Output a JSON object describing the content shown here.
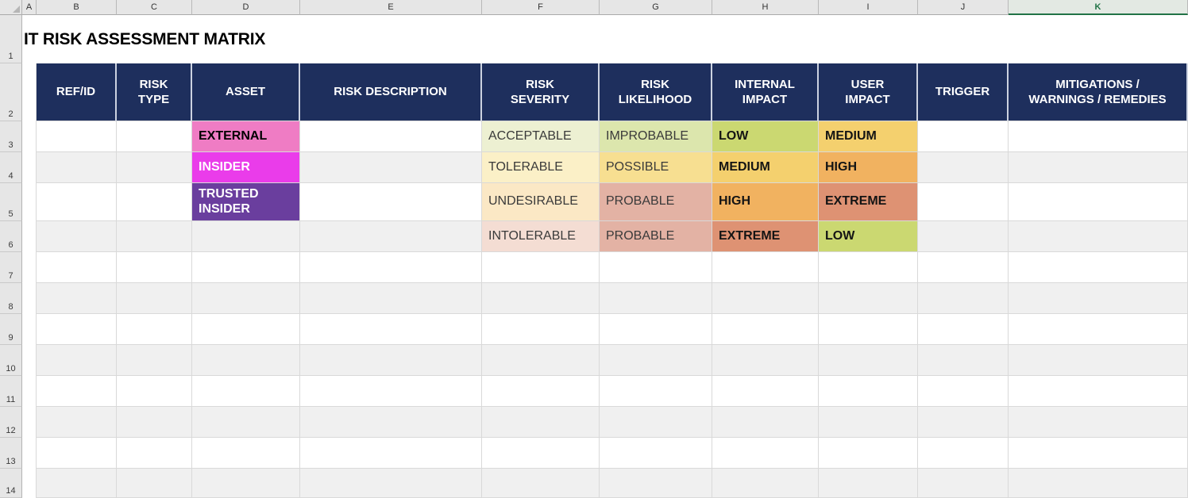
{
  "title": "IT RISK ASSESSMENT MATRIX",
  "columns": [
    {
      "letter": "A"
    },
    {
      "letter": "B"
    },
    {
      "letter": "C"
    },
    {
      "letter": "D"
    },
    {
      "letter": "E"
    },
    {
      "letter": "F"
    },
    {
      "letter": "G"
    },
    {
      "letter": "H"
    },
    {
      "letter": "I"
    },
    {
      "letter": "J"
    },
    {
      "letter": "K",
      "selected": true
    }
  ],
  "row_numbers": [
    "1",
    "2",
    "3",
    "4",
    "5",
    "6",
    "7",
    "8",
    "9",
    "10",
    "11",
    "12",
    "13",
    "14"
  ],
  "header_row": {
    "bg": "#1e2f5d",
    "text_color": "#ffffff",
    "cells": [
      {
        "col": "B",
        "label": "REF/ID"
      },
      {
        "col": "C",
        "label": "RISK\nTYPE"
      },
      {
        "col": "D",
        "label": "ASSET"
      },
      {
        "col": "E",
        "label": "RISK DESCRIPTION"
      },
      {
        "col": "F",
        "label": "RISK\nSEVERITY"
      },
      {
        "col": "G",
        "label": "RISK\nLIKELIHOOD"
      },
      {
        "col": "H",
        "label": "INTERNAL\nIMPACT"
      },
      {
        "col": "I",
        "label": "USER\nIMPACT"
      },
      {
        "col": "J",
        "label": "TRIGGER"
      },
      {
        "col": "K",
        "label": "MITIGATIONS /\nWARNINGS / REMEDIES"
      }
    ]
  },
  "matrix_rows": [
    {
      "row": 3,
      "cells": [
        {
          "col": "D",
          "text": "EXTERNAL",
          "bg": "#ef7cc4",
          "fg": "#000000",
          "bold": true
        },
        {
          "col": "F",
          "text": "ACCEPTABLE",
          "bg": "#edf0d2",
          "fg": "#3a3a3a",
          "bold": false
        },
        {
          "col": "G",
          "text": "IMPROBABLE",
          "bg": "#dce6ad",
          "fg": "#3a3a3a",
          "bold": false
        },
        {
          "col": "H",
          "text": "LOW",
          "bg": "#cbd871",
          "fg": "#141414",
          "bold": true
        },
        {
          "col": "I",
          "text": "MEDIUM",
          "bg": "#f4d06e",
          "fg": "#141414",
          "bold": true
        }
      ]
    },
    {
      "row": 4,
      "cells": [
        {
          "col": "D",
          "text": "INSIDER",
          "bg": "#ea3cea",
          "fg": "#ffffff",
          "bold": true
        },
        {
          "col": "F",
          "text": "TOLERABLE",
          "bg": "#fbf0c7",
          "fg": "#3a3a3a",
          "bold": false
        },
        {
          "col": "G",
          "text": "POSSIBLE",
          "bg": "#f7df91",
          "fg": "#3a3a3a",
          "bold": false
        },
        {
          "col": "H",
          "text": "MEDIUM",
          "bg": "#f4d06e",
          "fg": "#141414",
          "bold": true
        },
        {
          "col": "I",
          "text": "HIGH",
          "bg": "#f1b260",
          "fg": "#141414",
          "bold": true
        }
      ]
    },
    {
      "row": 5,
      "cells": [
        {
          "col": "D",
          "text": "TRUSTED INSIDER",
          "bg": "#6a3e9e",
          "fg": "#ffffff",
          "bold": true
        },
        {
          "col": "F",
          "text": "UNDESIRABLE",
          "bg": "#fbe8c5",
          "fg": "#3a3a3a",
          "bold": false
        },
        {
          "col": "G",
          "text": "PROBABLE",
          "bg": "#e3b2a4",
          "fg": "#3a3a3a",
          "bold": false
        },
        {
          "col": "H",
          "text": "HIGH",
          "bg": "#f1b260",
          "fg": "#141414",
          "bold": true
        },
        {
          "col": "I",
          "text": "EXTREME",
          "bg": "#de9273",
          "fg": "#141414",
          "bold": true
        }
      ]
    },
    {
      "row": 6,
      "cells": [
        {
          "col": "F",
          "text": "INTOLERABLE",
          "bg": "#f4ddd3",
          "fg": "#3a3a3a",
          "bold": false
        },
        {
          "col": "G",
          "text": "PROBABLE",
          "bg": "#e3b2a4",
          "fg": "#3a3a3a",
          "bold": false
        },
        {
          "col": "H",
          "text": "EXTREME",
          "bg": "#de9273",
          "fg": "#141414",
          "bold": true
        },
        {
          "col": "I",
          "text": "LOW",
          "bg": "#cbd871",
          "fg": "#141414",
          "bold": true
        }
      ]
    }
  ],
  "colors": {
    "header_bg": "#1e2f5d",
    "band_gray": "#f0f0f0",
    "gridline": "#d9d9d9",
    "gutter_bg": "#e6e6e6",
    "selected_column_green": "#217346",
    "asset_external_pink": "#ef7cc4",
    "asset_insider_magenta": "#ea3cea",
    "asset_trusted_purple": "#6a3e9e",
    "impact_low_green": "#cbd871",
    "impact_medium_yellow": "#f4d06e",
    "impact_high_orange": "#f1b260",
    "impact_extreme_salmon": "#de9273"
  }
}
